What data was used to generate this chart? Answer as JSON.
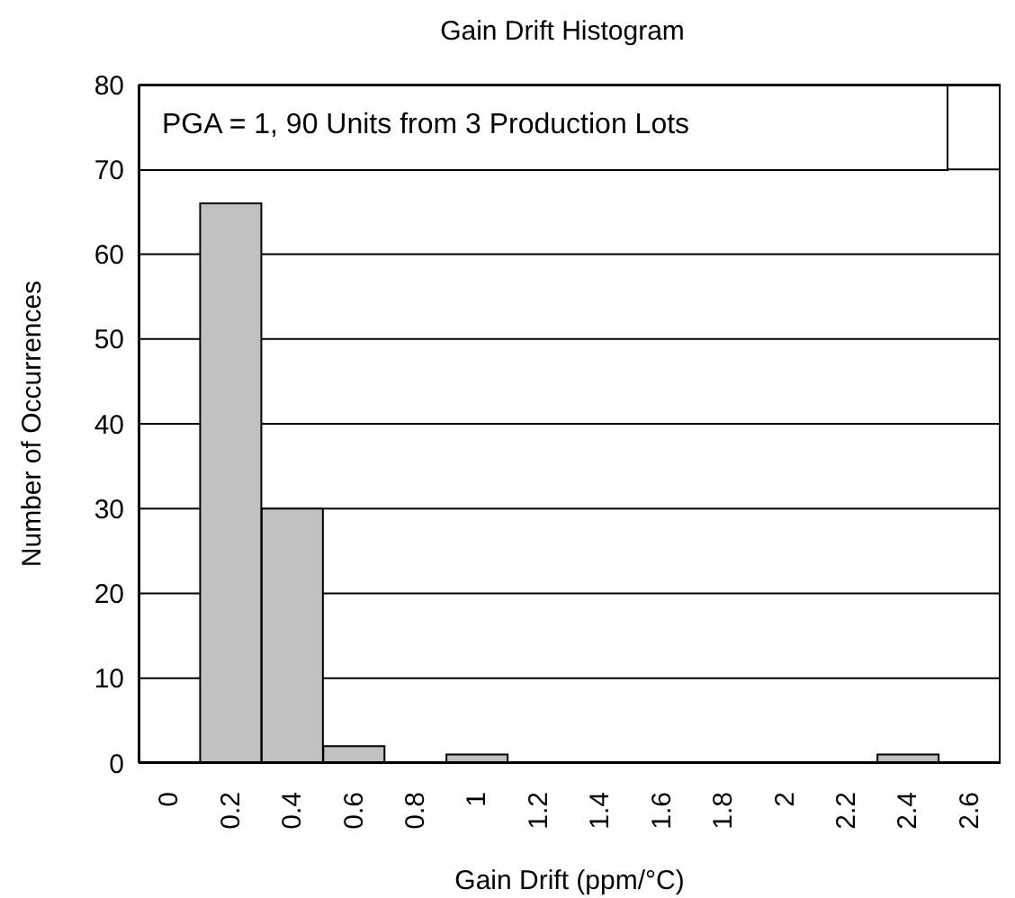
{
  "chart_data": {
    "type": "bar",
    "title": "Gain Drift Histogram",
    "xlabel": "Gain Drift (ppm/°C)",
    "ylabel": "Number of Occurrences",
    "annotations": [
      "PGA = 1, 90 Units from 3 Production Lots"
    ],
    "categories": [
      "0",
      "0.2",
      "0.4",
      "0.6",
      "0.8",
      "1",
      "1.2",
      "1.4",
      "1.6",
      "1.8",
      "2",
      "2.2",
      "2.4",
      "2.6"
    ],
    "values": [
      0,
      66,
      30,
      2,
      0,
      1,
      0,
      0,
      0,
      0,
      0,
      0,
      1,
      0
    ],
    "color": "#c0c0c0",
    "ylim": [
      0,
      80
    ],
    "yticks": [
      0,
      10,
      20,
      30,
      40,
      50,
      60,
      70,
      80
    ],
    "grid": "y",
    "legend": false
  }
}
